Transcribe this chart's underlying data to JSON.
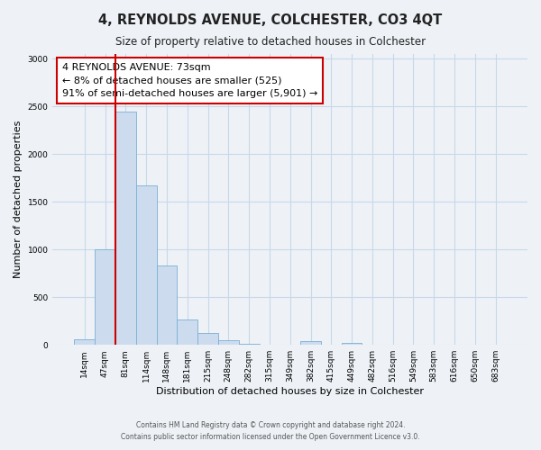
{
  "title": "4, REYNOLDS AVENUE, COLCHESTER, CO3 4QT",
  "subtitle": "Size of property relative to detached houses in Colchester",
  "xlabel": "Distribution of detached houses by size in Colchester",
  "ylabel": "Number of detached properties",
  "bin_labels": [
    "14sqm",
    "47sqm",
    "81sqm",
    "114sqm",
    "148sqm",
    "181sqm",
    "215sqm",
    "248sqm",
    "282sqm",
    "315sqm",
    "349sqm",
    "382sqm",
    "415sqm",
    "449sqm",
    "482sqm",
    "516sqm",
    "549sqm",
    "583sqm",
    "616sqm",
    "650sqm",
    "683sqm"
  ],
  "bar_heights": [
    60,
    1000,
    2450,
    1670,
    830,
    270,
    120,
    45,
    10,
    0,
    0,
    35,
    0,
    20,
    0,
    0,
    0,
    0,
    0,
    0,
    0
  ],
  "bar_color": "#ccdcee",
  "bar_edge_color": "#7aafd4",
  "vline_color": "#cc0000",
  "annotation_text": "4 REYNOLDS AVENUE: 73sqm\n← 8% of detached houses are smaller (525)\n91% of semi-detached houses are larger (5,901) →",
  "annotation_box_color": "#ffffff",
  "annotation_box_edge": "#cc0000",
  "grid_color": "#c8d8e8",
  "background_color": "#eef2f7",
  "ylim": [
    0,
    3050
  ],
  "footer1": "Contains HM Land Registry data © Crown copyright and database right 2024.",
  "footer2": "Contains public sector information licensed under the Open Government Licence v3.0."
}
